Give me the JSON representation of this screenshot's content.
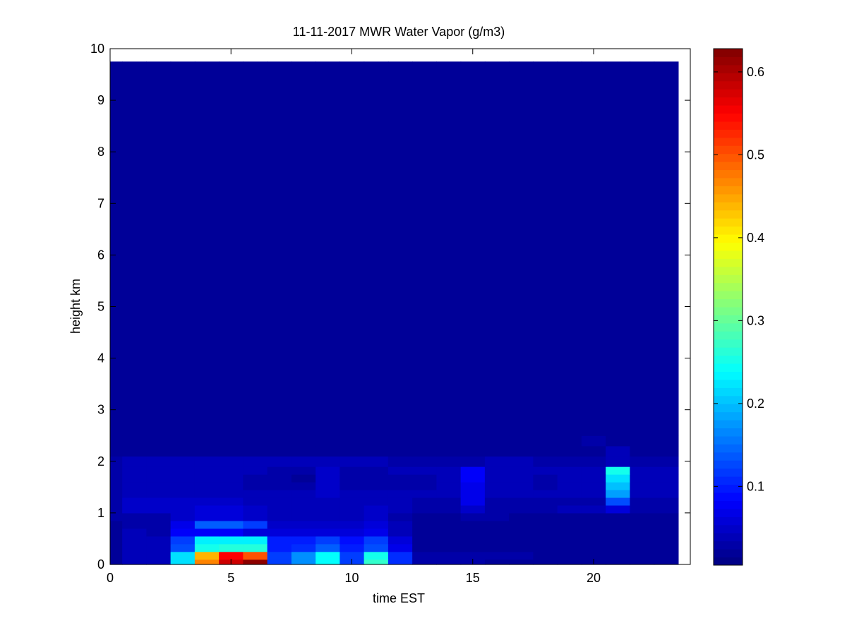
{
  "chart_data": {
    "type": "heatmap",
    "title": "11-11-2017 MWR Water Vapor (g/m3)",
    "xlabel": "time EST",
    "ylabel": "height km",
    "xlim": [
      0,
      24
    ],
    "ylim": [
      0,
      10
    ],
    "xticks": [
      0,
      5,
      10,
      15,
      20
    ],
    "yticks": [
      0,
      1,
      2,
      3,
      4,
      5,
      6,
      7,
      8,
      9,
      10
    ],
    "colorbar": {
      "colormap": "jet",
      "clim": [
        0.005,
        0.628
      ],
      "ticks": [
        0.1,
        0.2,
        0.3,
        0.4,
        0.5,
        0.6
      ]
    },
    "x_edges": [
      0,
      0.5,
      1.5,
      2.5,
      3.5,
      4.5,
      5.5,
      6.5,
      7.5,
      8.5,
      9.5,
      10.5,
      11.5,
      12.5,
      13.5,
      14.5,
      15.5,
      16.5,
      17.5,
      18.5,
      19.5,
      20.5,
      21.5,
      22.5,
      23.5
    ],
    "y_edges": [
      0,
      0.1,
      0.25,
      0.4,
      0.55,
      0.7,
      0.85,
      1.0,
      1.15,
      1.3,
      1.45,
      1.6,
      1.75,
      1.9,
      2.1,
      2.3,
      2.5,
      9.75
    ],
    "z": [
      [
        0.02,
        0.04,
        0.04,
        0.22,
        0.47,
        0.58,
        0.62,
        0.12,
        0.17,
        0.24,
        0.12,
        0.27,
        0.11,
        0.03,
        0.03,
        0.03,
        0.02,
        0.02,
        0.02,
        0.02,
        0.02,
        0.02,
        0.02,
        0.02
      ],
      [
        0.02,
        0.04,
        0.04,
        0.22,
        0.44,
        0.55,
        0.5,
        0.12,
        0.17,
        0.24,
        0.12,
        0.25,
        0.11,
        0.03,
        0.03,
        0.03,
        0.03,
        0.03,
        0.02,
        0.02,
        0.02,
        0.02,
        0.02,
        0.02
      ],
      [
        0.02,
        0.04,
        0.04,
        0.13,
        0.25,
        0.26,
        0.26,
        0.1,
        0.11,
        0.14,
        0.1,
        0.13,
        0.07,
        0.02,
        0.02,
        0.02,
        0.02,
        0.02,
        0.02,
        0.02,
        0.02,
        0.02,
        0.02,
        0.02
      ],
      [
        0.02,
        0.04,
        0.04,
        0.12,
        0.23,
        0.23,
        0.23,
        0.1,
        0.1,
        0.12,
        0.09,
        0.12,
        0.06,
        0.02,
        0.02,
        0.02,
        0.02,
        0.02,
        0.02,
        0.02,
        0.02,
        0.02,
        0.02,
        0.02
      ],
      [
        0.02,
        0.04,
        0.03,
        0.08,
        0.08,
        0.08,
        0.06,
        0.06,
        0.06,
        0.06,
        0.06,
        0.07,
        0.04,
        0.02,
        0.02,
        0.02,
        0.02,
        0.02,
        0.02,
        0.02,
        0.02,
        0.02,
        0.02,
        0.02
      ],
      [
        0.02,
        0.03,
        0.03,
        0.07,
        0.14,
        0.14,
        0.12,
        0.05,
        0.05,
        0.05,
        0.05,
        0.06,
        0.04,
        0.02,
        0.02,
        0.02,
        0.02,
        0.02,
        0.02,
        0.02,
        0.02,
        0.02,
        0.02,
        0.02
      ],
      [
        0.03,
        0.03,
        0.03,
        0.05,
        0.06,
        0.06,
        0.05,
        0.04,
        0.04,
        0.04,
        0.04,
        0.05,
        0.03,
        0.02,
        0.02,
        0.03,
        0.03,
        0.02,
        0.02,
        0.02,
        0.02,
        0.02,
        0.02,
        0.02
      ],
      [
        0.03,
        0.05,
        0.05,
        0.05,
        0.06,
        0.06,
        0.05,
        0.04,
        0.04,
        0.04,
        0.04,
        0.05,
        0.04,
        0.03,
        0.03,
        0.05,
        0.03,
        0.03,
        0.03,
        0.04,
        0.04,
        0.06,
        0.03,
        0.03
      ],
      [
        0.03,
        0.05,
        0.05,
        0.05,
        0.05,
        0.05,
        0.04,
        0.04,
        0.04,
        0.04,
        0.04,
        0.04,
        0.04,
        0.03,
        0.03,
        0.07,
        0.03,
        0.03,
        0.03,
        0.03,
        0.03,
        0.13,
        0.03,
        0.03
      ],
      [
        0.03,
        0.04,
        0.04,
        0.04,
        0.04,
        0.04,
        0.04,
        0.04,
        0.04,
        0.05,
        0.04,
        0.04,
        0.04,
        0.04,
        0.04,
        0.07,
        0.04,
        0.04,
        0.04,
        0.04,
        0.04,
        0.18,
        0.04,
        0.04
      ],
      [
        0.03,
        0.04,
        0.04,
        0.04,
        0.04,
        0.04,
        0.03,
        0.03,
        0.03,
        0.05,
        0.03,
        0.03,
        0.03,
        0.03,
        0.04,
        0.07,
        0.04,
        0.04,
        0.03,
        0.04,
        0.04,
        0.2,
        0.04,
        0.04
      ],
      [
        0.03,
        0.04,
        0.04,
        0.04,
        0.04,
        0.04,
        0.03,
        0.03,
        0.02,
        0.05,
        0.03,
        0.03,
        0.03,
        0.03,
        0.04,
        0.08,
        0.04,
        0.04,
        0.03,
        0.04,
        0.04,
        0.22,
        0.04,
        0.04
      ],
      [
        0.03,
        0.04,
        0.04,
        0.04,
        0.04,
        0.04,
        0.04,
        0.03,
        0.03,
        0.05,
        0.03,
        0.03,
        0.04,
        0.04,
        0.04,
        0.08,
        0.04,
        0.04,
        0.04,
        0.04,
        0.04,
        0.25,
        0.04,
        0.04
      ],
      [
        0.03,
        0.04,
        0.04,
        0.04,
        0.04,
        0.04,
        0.04,
        0.04,
        0.04,
        0.04,
        0.04,
        0.04,
        0.03,
        0.03,
        0.03,
        0.03,
        0.04,
        0.04,
        0.03,
        0.03,
        0.03,
        0.04,
        0.03,
        0.03
      ],
      [
        0.02,
        0.02,
        0.02,
        0.02,
        0.02,
        0.02,
        0.02,
        0.02,
        0.02,
        0.02,
        0.02,
        0.02,
        0.02,
        0.02,
        0.02,
        0.02,
        0.02,
        0.02,
        0.02,
        0.02,
        0.02,
        0.04,
        0.02,
        0.02
      ],
      [
        0.02,
        0.02,
        0.02,
        0.02,
        0.02,
        0.02,
        0.02,
        0.02,
        0.02,
        0.02,
        0.02,
        0.02,
        0.02,
        0.02,
        0.02,
        0.02,
        0.02,
        0.02,
        0.02,
        0.02,
        0.03,
        0.02,
        0.02,
        0.02
      ],
      [
        0.02,
        0.02,
        0.02,
        0.02,
        0.02,
        0.02,
        0.02,
        0.02,
        0.02,
        0.02,
        0.02,
        0.02,
        0.02,
        0.02,
        0.02,
        0.02,
        0.02,
        0.02,
        0.02,
        0.02,
        0.02,
        0.02,
        0.02,
        0.02
      ]
    ]
  }
}
